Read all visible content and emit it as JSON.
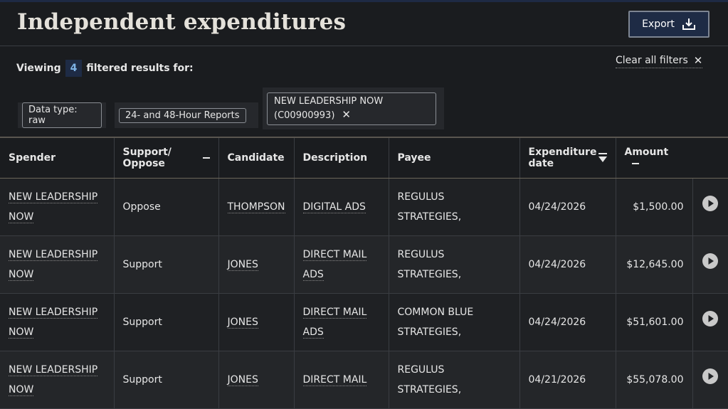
{
  "header": {
    "title": "Independent expenditures",
    "export_label": "Export"
  },
  "filters": {
    "viewing_prefix": "Viewing",
    "count": "4",
    "viewing_suffix": "filtered results for:",
    "clear_all_label": "Clear all filters",
    "tags": [
      {
        "label": "Data type: raw"
      },
      {
        "label": "24- and 48-Hour Reports"
      },
      {
        "line1": "NEW LEADERSHIP NOW",
        "line2": "(C00900993)"
      }
    ]
  },
  "table": {
    "columns": {
      "spender": "Spender",
      "support_oppose": "Support/ Oppose",
      "candidate": "Candidate",
      "description": "Description",
      "payee": "Payee",
      "expenditure_date": "Expenditure date",
      "amount": "Amount"
    },
    "rows": [
      {
        "spender": "NEW LEADERSHIP NOW",
        "support": "Oppose",
        "candidate": "THOMPSON",
        "description": "DIGITAL ADS",
        "payee": "REGULUS STRATEGIES,",
        "date": "04/24/2026",
        "amount": "$1,500.00"
      },
      {
        "spender": "NEW LEADERSHIP NOW",
        "support": "Support",
        "candidate": "JONES",
        "description": "DIRECT MAIL ADS",
        "payee": "REGULUS STRATEGIES,",
        "date": "04/24/2026",
        "amount": "$12,645.00"
      },
      {
        "spender": "NEW LEADERSHIP NOW",
        "support": "Support",
        "candidate": "JONES",
        "description": "DIRECT MAIL ADS",
        "payee": "COMMON BLUE STRATEGIES,",
        "date": "04/24/2026",
        "amount": "$51,601.00"
      },
      {
        "spender": "NEW LEADERSHIP NOW",
        "support": "Support",
        "candidate": "JONES",
        "description": "DIRECT MAIL",
        "payee": "REGULUS STRATEGIES,",
        "date": "04/21/2026",
        "amount": "$55,078.00"
      }
    ]
  },
  "icons": {
    "export": "download-icon",
    "clear": "close-icon",
    "sort": "sort-descending-icon",
    "collapse": "minus-icon",
    "row_action": "play-circle-icon"
  },
  "colors": {
    "background": "#1a1c1f",
    "accent": "#1e2b45",
    "count_text": "#7fb4e8"
  }
}
